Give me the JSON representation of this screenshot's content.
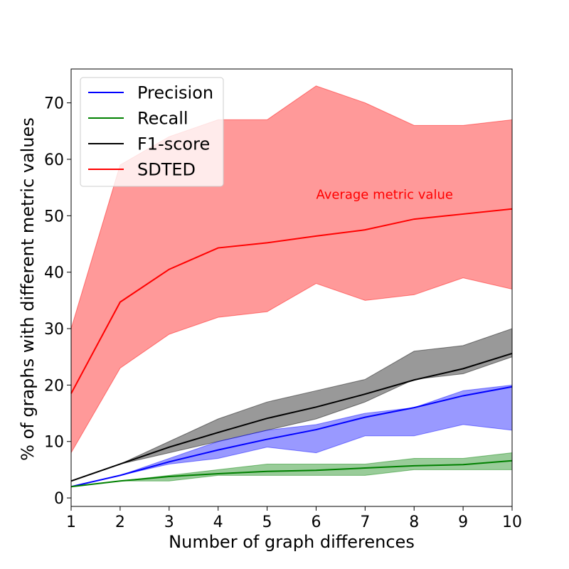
{
  "chart_data": {
    "type": "line",
    "title": "",
    "xlabel": "Number of graph differences",
    "ylabel": "% of graphs with different metric values",
    "xlim": [
      1,
      10
    ],
    "ylim": [
      -1.5,
      76
    ],
    "x_ticks": [
      1,
      2,
      3,
      4,
      5,
      6,
      7,
      8,
      9,
      10
    ],
    "y_ticks": [
      0,
      10,
      20,
      30,
      40,
      50,
      60,
      70
    ],
    "x": [
      1,
      2,
      3,
      4,
      5,
      6,
      7,
      8,
      9,
      10
    ],
    "grid": false,
    "legend_position": "upper-left",
    "series": [
      {
        "name": "Precision",
        "color": "#0000ff",
        "values": [
          2.0,
          4.0,
          6.4,
          8.5,
          10.4,
          12.1,
          14.3,
          16.0,
          18.1,
          19.7
        ],
        "band_lower": [
          2.0,
          4.0,
          6.0,
          7.0,
          9.0,
          8.0,
          11.0,
          11.0,
          13.0,
          12.0
        ],
        "band_upper": [
          2.0,
          4.0,
          7.0,
          10.0,
          12.0,
          13.0,
          15.0,
          16.0,
          19.0,
          20.0
        ]
      },
      {
        "name": "Recall",
        "color": "#008000",
        "values": [
          2.0,
          3.0,
          3.8,
          4.3,
          4.7,
          4.9,
          5.3,
          5.7,
          5.9,
          6.6
        ],
        "band_lower": [
          2.0,
          3.0,
          3.0,
          4.0,
          4.0,
          4.0,
          4.0,
          5.0,
          5.0,
          5.0
        ],
        "band_upper": [
          2.0,
          3.0,
          4.0,
          5.0,
          6.0,
          6.0,
          6.0,
          7.0,
          7.0,
          8.0
        ]
      },
      {
        "name": "F1-score",
        "color": "#000000",
        "values": [
          3.0,
          6.0,
          9.0,
          11.6,
          14.1,
          16.1,
          18.4,
          20.9,
          22.9,
          25.6
        ],
        "band_lower": [
          3.0,
          6.0,
          8.0,
          10.0,
          12.0,
          14.0,
          17.0,
          21.0,
          22.0,
          25.0
        ],
        "band_upper": [
          3.0,
          6.0,
          10.0,
          14.0,
          17.0,
          19.0,
          21.0,
          26.0,
          27.0,
          30.0
        ]
      },
      {
        "name": "SDTED",
        "color": "#ff0000",
        "values": [
          18.5,
          34.7,
          40.5,
          44.3,
          45.2,
          46.4,
          47.5,
          49.4,
          50.3,
          51.2
        ],
        "band_lower": [
          8.0,
          23.0,
          29.0,
          32.0,
          33.0,
          38.0,
          35.0,
          36.0,
          39.0,
          37.0
        ],
        "band_upper": [
          30.0,
          59.0,
          64.0,
          67.0,
          67.0,
          73.0,
          70.0,
          66.0,
          66.0,
          67.0
        ]
      }
    ],
    "annotations": [
      {
        "text": "Average metric value",
        "color": "#ff0000",
        "x": 6.0,
        "y": 53.0
      }
    ]
  }
}
